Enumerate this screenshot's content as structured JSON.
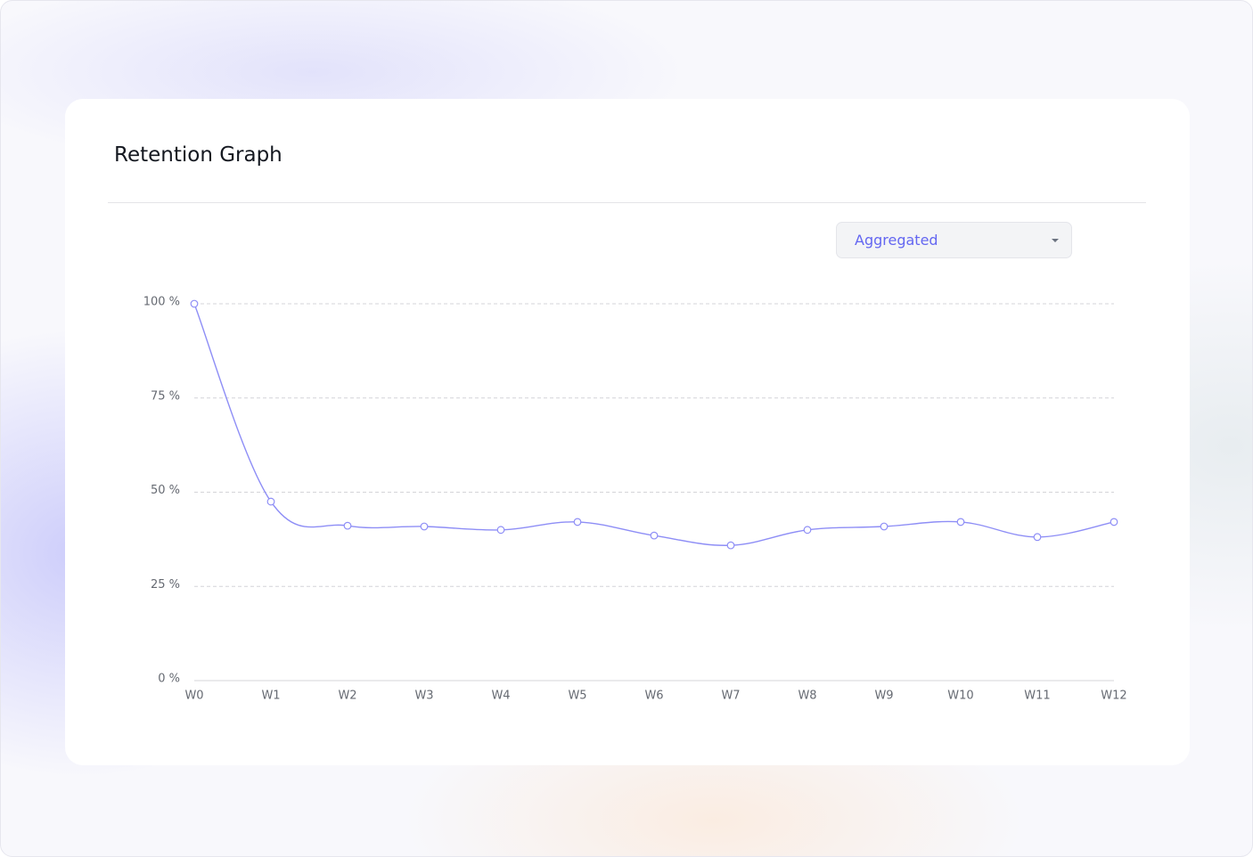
{
  "dropdown": {
    "label": "Aggregated"
  },
  "chart_data": {
    "type": "line",
    "title": "Retention Graph",
    "categories": [
      "W0",
      "W1",
      "W2",
      "W3",
      "W4",
      "W5",
      "W6",
      "W7",
      "W8",
      "W9",
      "W10",
      "W11",
      "W12"
    ],
    "series": [
      {
        "color": "#8e8ef6",
        "values": [
          100,
          47.5,
          41.1,
          40.9,
          40,
          42.1,
          38.5,
          35.9,
          40,
          40.9,
          42.1,
          38.1,
          42.1
        ]
      }
    ],
    "ylim": [
      0,
      100
    ],
    "yticks": [
      {
        "value": 0,
        "label": "0 %"
      },
      {
        "value": 25,
        "label": "25 %"
      },
      {
        "value": 50,
        "label": "50 %"
      },
      {
        "value": 75,
        "label": "75 %"
      },
      {
        "value": 100,
        "label": "100 %"
      }
    ],
    "grid": true
  }
}
